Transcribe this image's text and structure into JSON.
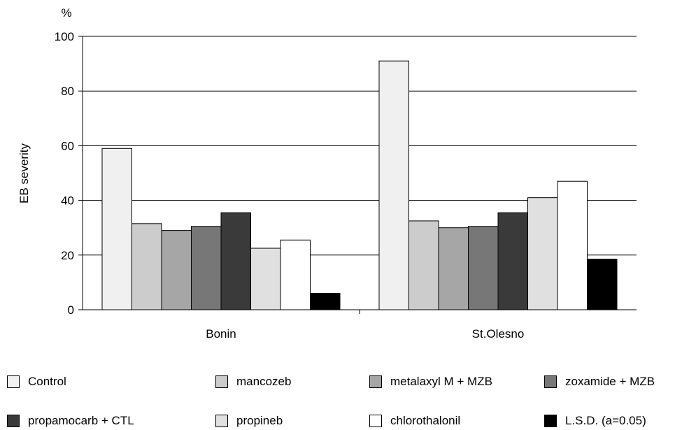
{
  "chart_data": {
    "type": "bar",
    "title": "",
    "ylabel": "EB severity",
    "yunit": "%",
    "ylim": [
      0,
      100
    ],
    "yticks": [
      0,
      20,
      40,
      60,
      80,
      100
    ],
    "grid": true,
    "legend_position": "bottom",
    "categories": [
      "Bonin",
      "St.Olesno"
    ],
    "series": [
      {
        "name": "Control",
        "color": "#f0f0f0",
        "values": [
          59,
          91
        ]
      },
      {
        "name": "mancozeb",
        "color": "#cccccc",
        "values": [
          31.5,
          32.5
        ]
      },
      {
        "name": "metalaxyl M + MZB",
        "color": "#a6a6a6",
        "values": [
          29,
          30
        ]
      },
      {
        "name": "zoxamide +  MZB",
        "color": "#777777",
        "values": [
          30.5,
          30.5
        ]
      },
      {
        "name": "propamocarb + CTL",
        "color": "#3a3a3a",
        "values": [
          35.5,
          35.5
        ]
      },
      {
        "name": "propineb",
        "color": "#e0e0e0",
        "values": [
          22.5,
          41
        ]
      },
      {
        "name": "chlorothalonil",
        "color": "#ffffff",
        "values": [
          25.5,
          47
        ]
      },
      {
        "name": "L.S.D. (a=0.05)",
        "color": "#000000",
        "values": [
          6,
          18.5
        ]
      }
    ]
  }
}
